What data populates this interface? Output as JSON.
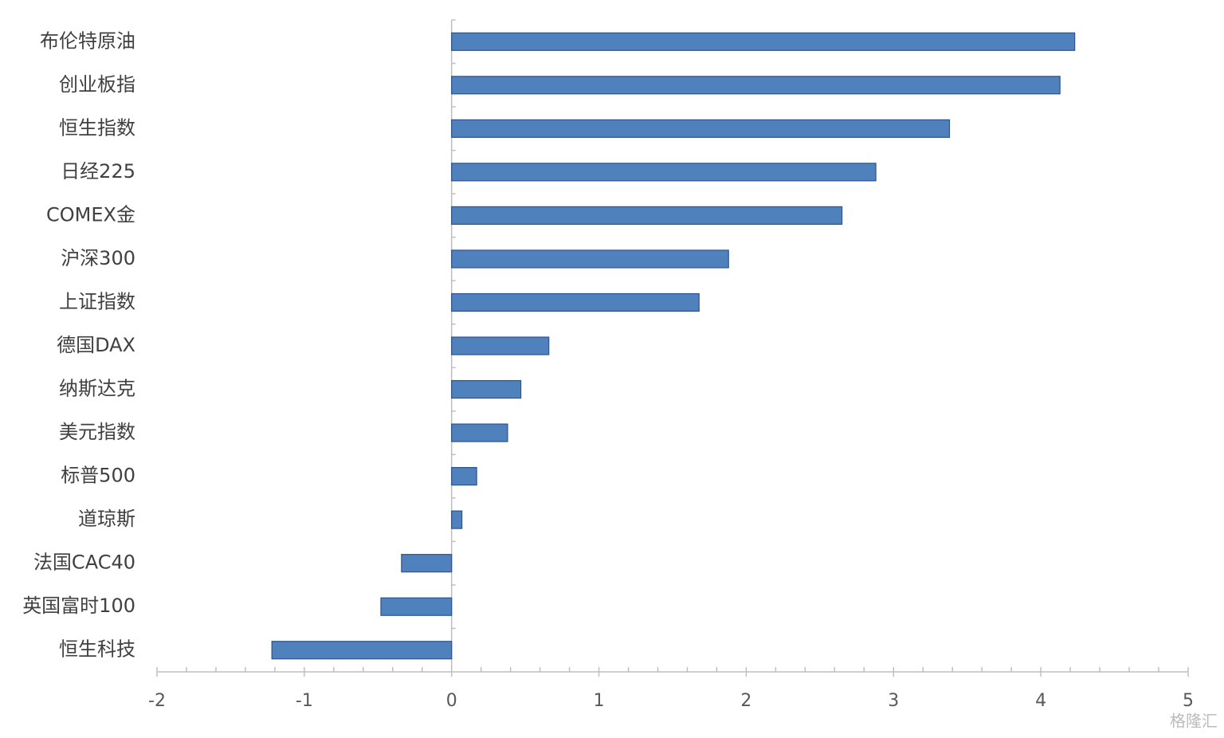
{
  "chart_data": {
    "type": "barh",
    "categories": [
      "布伦特原油",
      "创业板指",
      "恒生指数",
      "日经225",
      "COMEX金",
      "沪深300",
      "上证指数",
      "德国DAX",
      "纳斯达克",
      "美元指数",
      "标普500",
      "道琼斯",
      "法国CAC40",
      "英国富时100",
      "恒生科技"
    ],
    "values": [
      4.23,
      4.13,
      3.38,
      2.88,
      2.65,
      1.88,
      1.68,
      0.66,
      0.47,
      0.38,
      0.17,
      0.07,
      -0.34,
      -0.48,
      -1.22
    ],
    "color": "#4f81bd",
    "xlim": [
      -2,
      5
    ],
    "xticks": [
      -2,
      -1,
      0,
      1,
      2,
      3,
      4,
      5
    ],
    "minor_xticks": [
      -1.8,
      -1.6,
      -1.4,
      -1.2,
      -0.8,
      -0.6,
      -0.4,
      -0.2,
      0.2,
      0.4,
      0.6,
      0.8,
      1.2,
      1.4,
      1.6,
      1.8,
      2.2,
      2.4,
      2.6,
      2.8,
      3.2,
      3.4,
      3.6,
      3.8,
      4.2,
      4.4,
      4.6,
      4.8
    ],
    "watermark": "格隆汇"
  }
}
